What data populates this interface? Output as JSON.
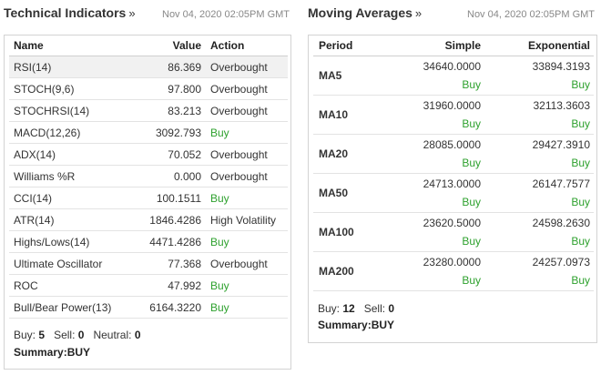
{
  "technical": {
    "title": "Technical Indicators",
    "arrow": "»",
    "timestamp": "Nov 04, 2020 02:05PM GMT",
    "headers": {
      "name": "Name",
      "value": "Value",
      "action": "Action"
    },
    "rows": [
      {
        "name": "RSI(14)",
        "value": "86.369",
        "action": "Overbought"
      },
      {
        "name": "STOCH(9,6)",
        "value": "97.800",
        "action": "Overbought"
      },
      {
        "name": "STOCHRSI(14)",
        "value": "83.213",
        "action": "Overbought"
      },
      {
        "name": "MACD(12,26)",
        "value": "3092.793",
        "action": "Buy"
      },
      {
        "name": "ADX(14)",
        "value": "70.052",
        "action": "Overbought"
      },
      {
        "name": "Williams %R",
        "value": "0.000",
        "action": "Overbought"
      },
      {
        "name": "CCI(14)",
        "value": "100.1511",
        "action": "Buy"
      },
      {
        "name": "ATR(14)",
        "value": "1846.4286",
        "action": "High Volatility"
      },
      {
        "name": "Highs/Lows(14)",
        "value": "4471.4286",
        "action": "Buy"
      },
      {
        "name": "Ultimate Oscillator",
        "value": "77.368",
        "action": "Overbought"
      },
      {
        "name": "ROC",
        "value": "47.992",
        "action": "Buy"
      },
      {
        "name": "Bull/Bear Power(13)",
        "value": "6164.3220",
        "action": "Buy"
      }
    ],
    "counts": {
      "buy_label": "Buy:",
      "buy": "5",
      "sell_label": "Sell:",
      "sell": "0",
      "neutral_label": "Neutral:",
      "neutral": "0"
    },
    "summary_label": "Summary:",
    "summary_value": "BUY"
  },
  "moving": {
    "title": "Moving Averages",
    "arrow": "»",
    "timestamp": "Nov 04, 2020 02:05PM GMT",
    "headers": {
      "period": "Period",
      "simple": "Simple",
      "exponential": "Exponential"
    },
    "rows": [
      {
        "period": "MA5",
        "simple": "34640.0000",
        "simple_action": "Buy",
        "exp": "33894.3193",
        "exp_action": "Buy"
      },
      {
        "period": "MA10",
        "simple": "31960.0000",
        "simple_action": "Buy",
        "exp": "32113.3603",
        "exp_action": "Buy"
      },
      {
        "period": "MA20",
        "simple": "28085.0000",
        "simple_action": "Buy",
        "exp": "29427.3910",
        "exp_action": "Buy"
      },
      {
        "period": "MA50",
        "simple": "24713.0000",
        "simple_action": "Buy",
        "exp": "26147.7577",
        "exp_action": "Buy"
      },
      {
        "period": "MA100",
        "simple": "23620.5000",
        "simple_action": "Buy",
        "exp": "24598.2630",
        "exp_action": "Buy"
      },
      {
        "period": "MA200",
        "simple": "23280.0000",
        "simple_action": "Buy",
        "exp": "24257.0973",
        "exp_action": "Buy"
      }
    ],
    "counts": {
      "buy_label": "Buy:",
      "buy": "12",
      "sell_label": "Sell:",
      "sell": "0"
    },
    "summary_label": "Summary:",
    "summary_value": "BUY"
  },
  "colors": {
    "buy": "#2ea12e",
    "border": "#d3d3d3",
    "highlight_row": "#f1f1f1"
  }
}
